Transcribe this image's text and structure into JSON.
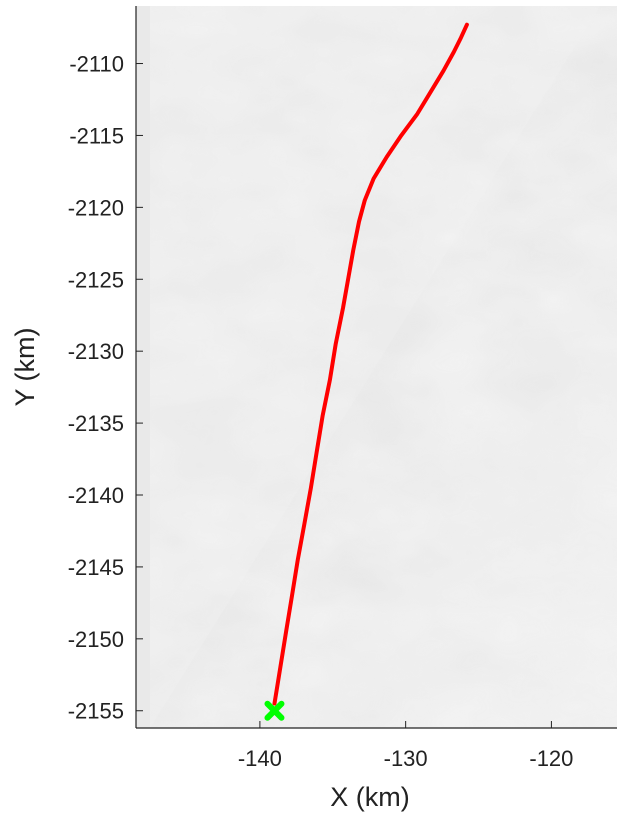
{
  "chart_data": {
    "type": "line",
    "title": "",
    "xlabel": "X (km)",
    "ylabel": "Y (km)",
    "xlim": [
      -148.5,
      -115.5
    ],
    "ylim": [
      -2156.2,
      -2106
    ],
    "xticks": [
      -140,
      -130,
      -120
    ],
    "yticks": [
      -2110,
      -2115,
      -2120,
      -2125,
      -2130,
      -2135,
      -2140,
      -2145,
      -2150,
      -2155
    ],
    "grid": false,
    "legend": "none",
    "background": "grayscale shaded-relief terrain image with a diagonal boundary between a flat light-gray region (upper left) and a textured region (lower right)",
    "series": [
      {
        "color": "#ff0000",
        "x": [
          -139,
          -138.6,
          -138.2,
          -137.8,
          -137.4,
          -136.95,
          -136.5,
          -136.1,
          -135.7,
          -135.2,
          -134.8,
          -134.3,
          -133.95,
          -133.6,
          -133.2,
          -132.8,
          -132.2,
          -131.3,
          -130.3,
          -129.2,
          -128.3,
          -127.4,
          -126.7,
          -126.2,
          -125.8
        ],
        "y": [
          -2154.5,
          -2152,
          -2149.5,
          -2147,
          -2144.5,
          -2142,
          -2139.5,
          -2137,
          -2134.5,
          -2132,
          -2129.5,
          -2127,
          -2125,
          -2123,
          -2121,
          -2119.5,
          -2118,
          -2116.5,
          -2115,
          -2113.5,
          -2112,
          -2110.5,
          -2109.2,
          -2108.2,
          -2107.3
        ]
      }
    ],
    "markers": [
      {
        "x": -139,
        "y": -2155,
        "color": "#00ff00",
        "shape": "x-cross"
      }
    ],
    "tick_format": "minus-sign"
  }
}
